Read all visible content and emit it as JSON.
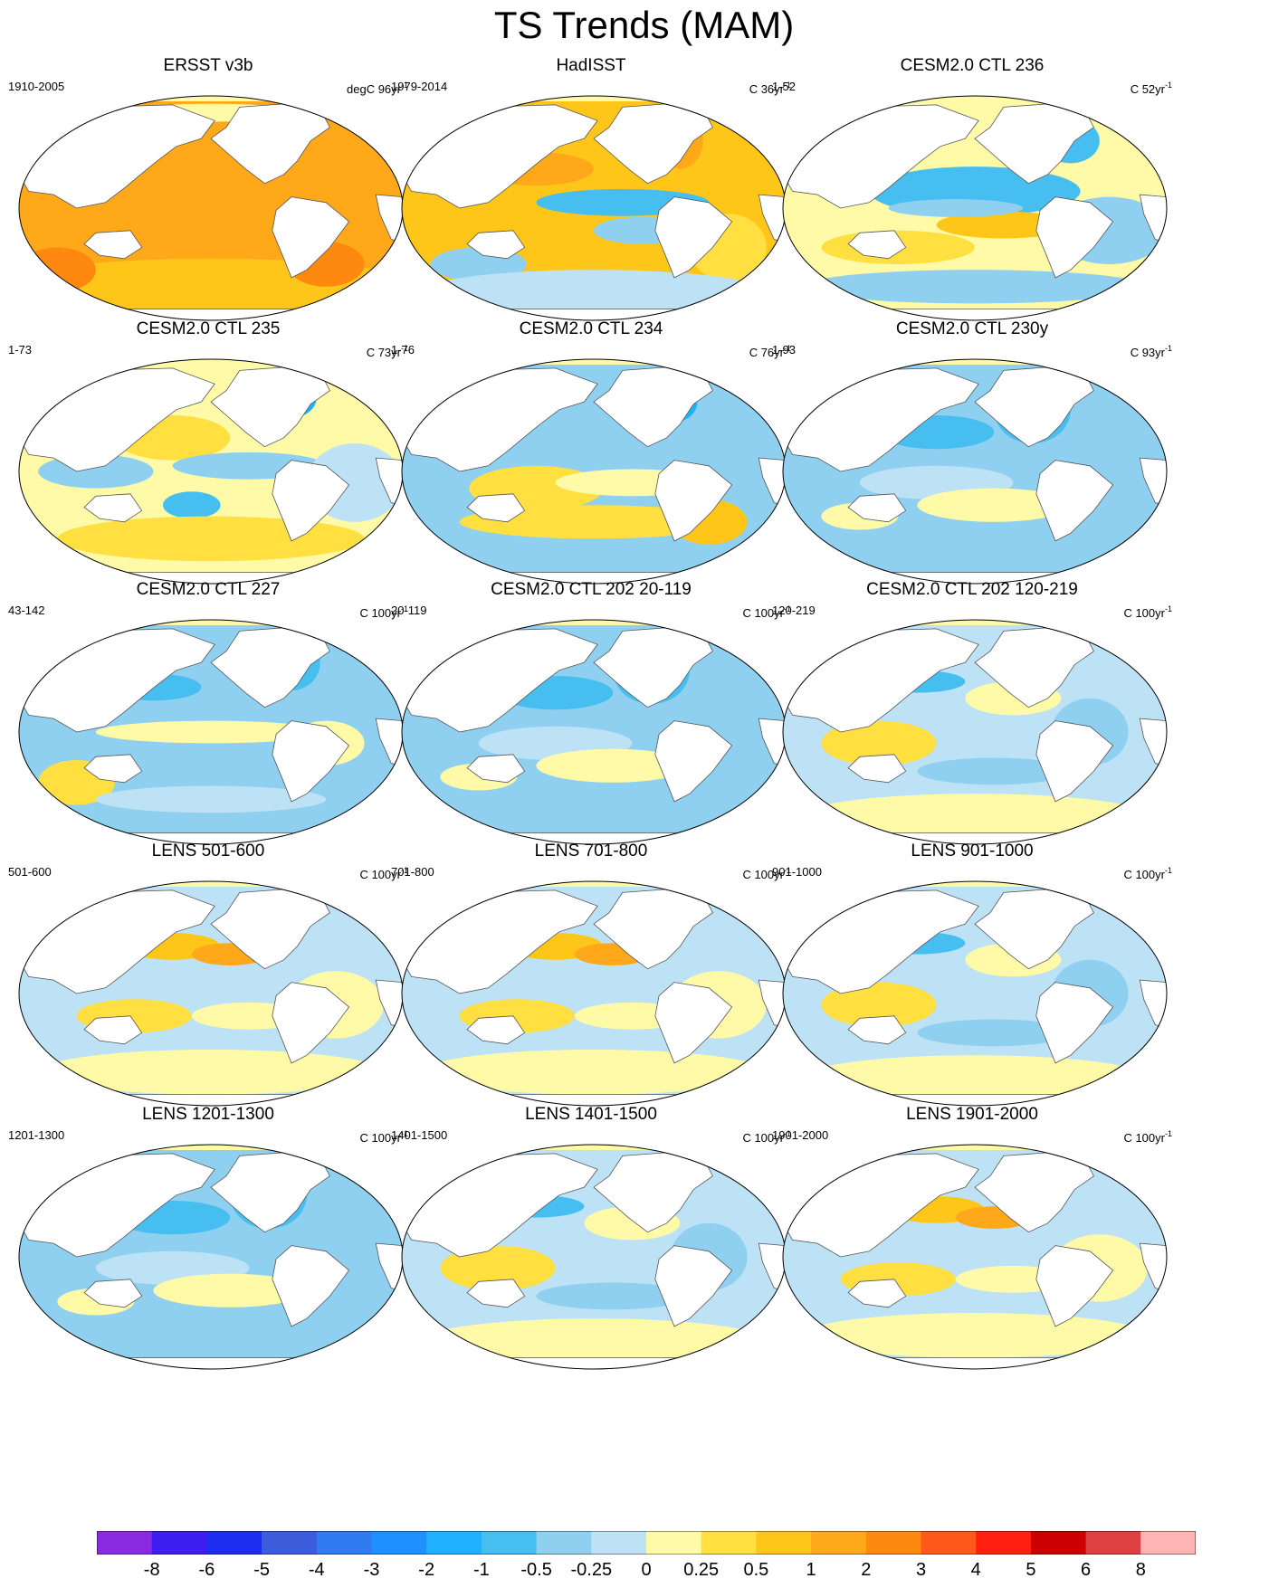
{
  "title": "TS Trends (MAM)",
  "panels": [
    {
      "title": "ERSST v3b",
      "period": "1910-2005",
      "units": "degC 96yr",
      "units_exp": "-1",
      "pattern": "warm"
    },
    {
      "title": "HadISST",
      "period": "1979-2014",
      "units": "C 36yr",
      "units_exp": "-1",
      "pattern": "hadisst"
    },
    {
      "title": "CESM2.0 CTL 236",
      "period": "1-52",
      "units": "C 52yr",
      "units_exp": "-1",
      "pattern": "cool-tropics"
    },
    {
      "title": "CESM2.0 CTL 235",
      "period": "1-73",
      "units": "C 73yr",
      "units_exp": "-1",
      "pattern": "mixed-warm"
    },
    {
      "title": "CESM2.0 CTL 234",
      "period": "1-76",
      "units": "C 76yr",
      "units_exp": "-1",
      "pattern": "natl-cold"
    },
    {
      "title": "CESM2.0 CTL 230y",
      "period": "1-93",
      "units": "C 93yr",
      "units_exp": "-1",
      "pattern": "cool"
    },
    {
      "title": "CESM2.0 CTL 227",
      "period": "43-142",
      "units": "C 100yr",
      "units_exp": "-1",
      "pattern": "natl-verycold"
    },
    {
      "title": "CESM2.0 CTL 202 20-119",
      "period": "20-119",
      "units": "C 100yr",
      "units_exp": "-1",
      "pattern": "cool"
    },
    {
      "title": "CESM2.0 CTL 202 120-219",
      "period": "120-219",
      "units": "C 100yr",
      "units_exp": "-1",
      "pattern": "mixed"
    },
    {
      "title": "LENS 501-600",
      "period": "501-600",
      "units": "C 100yr",
      "units_exp": "-1",
      "pattern": "npac-warm"
    },
    {
      "title": "LENS 701-800",
      "period": "701-800",
      "units": "C 100yr",
      "units_exp": "-1",
      "pattern": "npac-warm"
    },
    {
      "title": "LENS 901-1000",
      "period": "901-1000",
      "units": "C 100yr",
      "units_exp": "-1",
      "pattern": "mixed"
    },
    {
      "title": "LENS 1201-1300",
      "period": "1201-1300",
      "units": "C 100yr",
      "units_exp": "-1",
      "pattern": "cool"
    },
    {
      "title": "LENS 1401-1500",
      "period": "1401-1500",
      "units": "C 100yr",
      "units_exp": "-1",
      "pattern": "mixed"
    },
    {
      "title": "LENS 1901-2000",
      "period": "1901-2000",
      "units": "C 100yr",
      "units_exp": "-1",
      "pattern": "npac-warm"
    }
  ],
  "colorbar": {
    "labels": [
      "-8",
      "-6",
      "-5",
      "-4",
      "-3",
      "-2",
      "-1",
      "-0.5",
      "-0.25",
      "0",
      "0.25",
      "0.5",
      "1",
      "2",
      "3",
      "4",
      "5",
      "6",
      "8"
    ],
    "colors": [
      "#8a2be2",
      "#3d1df0",
      "#1e2ef0",
      "#3b5ddc",
      "#2f7bef",
      "#1e90ff",
      "#1fb0ff",
      "#46bff0",
      "#8fd0f0",
      "#bde2f5",
      "#fffaa8",
      "#ffe040",
      "#ffc61a",
      "#ffa81a",
      "#ff8810",
      "#ff5a1a",
      "#ff2010",
      "#cc0000",
      "#dd4040",
      "#ffb4b4"
    ]
  },
  "palette": {
    "land": "#ffffff",
    "coast": "#555555",
    "outline": "#000000"
  }
}
